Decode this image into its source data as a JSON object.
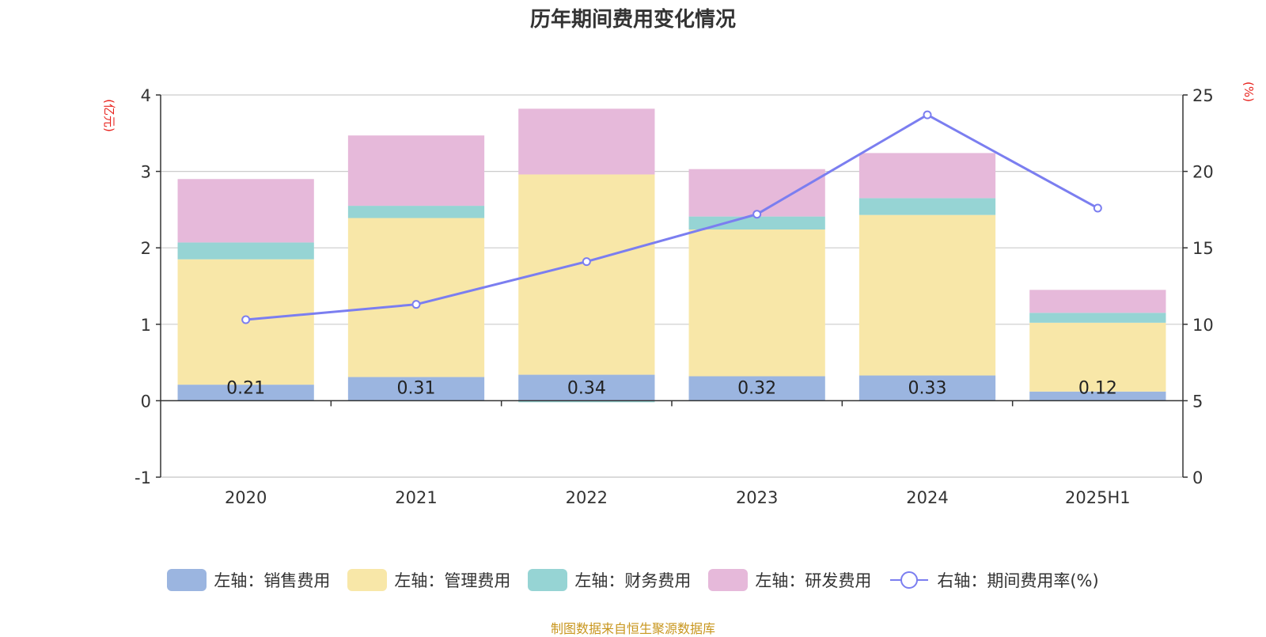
{
  "chart_data": {
    "type": "bar",
    "title": "历年期间费用变化情况",
    "categories": [
      "2020",
      "2021",
      "2022",
      "2023",
      "2024",
      "2025H1"
    ],
    "left_axis": {
      "unit": "(亿元)",
      "range": [
        -1,
        4
      ],
      "ticks": [
        "-1",
        "0",
        "1",
        "2",
        "3",
        "4"
      ]
    },
    "right_axis": {
      "unit": "(%)",
      "range": [
        0,
        25
      ],
      "ticks": [
        "0",
        "5",
        "10",
        "15",
        "20",
        "25"
      ]
    },
    "grid": true,
    "legend_position": "bottom",
    "series": [
      {
        "name": "左轴：销售费用",
        "type": "bar",
        "axis": "left",
        "color": "#9bb5e0",
        "values": [
          0.21,
          0.31,
          0.34,
          0.32,
          0.33,
          0.12
        ],
        "labels": [
          "0.21",
          "0.31",
          "0.34",
          "0.32",
          "0.33",
          "0.12"
        ]
      },
      {
        "name": "左轴：管理费用",
        "type": "bar",
        "axis": "left",
        "color": "#f8e7a8",
        "values": [
          1.64,
          2.08,
          2.62,
          1.92,
          2.1,
          0.9
        ]
      },
      {
        "name": "左轴：财务费用",
        "type": "bar",
        "axis": "left",
        "color": "#96d4d4",
        "values": [
          0.22,
          0.16,
          -0.02,
          0.17,
          0.22,
          0.13
        ]
      },
      {
        "name": "左轴：研发费用",
        "type": "bar",
        "axis": "left",
        "color": "#e6b9da",
        "values": [
          0.83,
          0.92,
          0.86,
          0.62,
          0.59,
          0.3
        ]
      },
      {
        "name": "右轴：期间费用率(%)",
        "type": "line",
        "axis": "right",
        "color": "#7b7ef0",
        "values": [
          10.3,
          11.3,
          14.1,
          17.2,
          23.7,
          17.6
        ]
      }
    ]
  },
  "footer": "制图数据来自恒生聚源数据库"
}
